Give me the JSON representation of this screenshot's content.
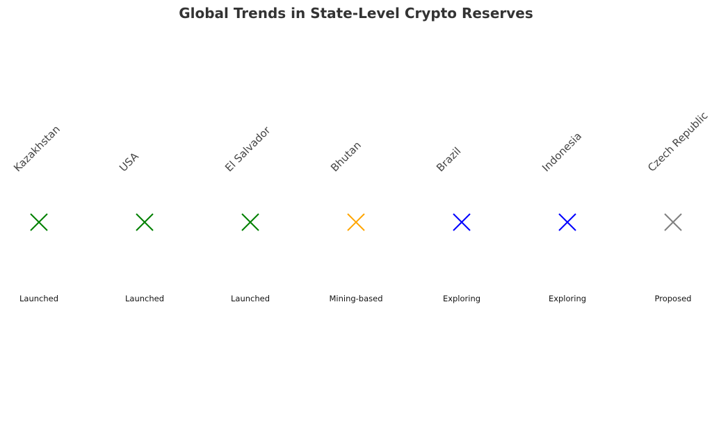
{
  "chart_data": {
    "type": "scatter",
    "title": "Global Trends in State-Level Crypto Reserves",
    "marker": "x",
    "countries": [
      "Kazakhstan",
      "USA",
      "El Salvador",
      "Bhutan",
      "Brazil",
      "Indonesia",
      "Czech Republic"
    ],
    "statuses": [
      "Launched",
      "Launched",
      "Launched",
      "Mining-based",
      "Exploring",
      "Exploring",
      "Proposed"
    ],
    "status_colors": {
      "Launched": "#008000",
      "Mining-based": "#ffa500",
      "Exploring": "#0000ff",
      "Proposed": "#808080"
    },
    "grid": false,
    "axes_visible": false
  }
}
